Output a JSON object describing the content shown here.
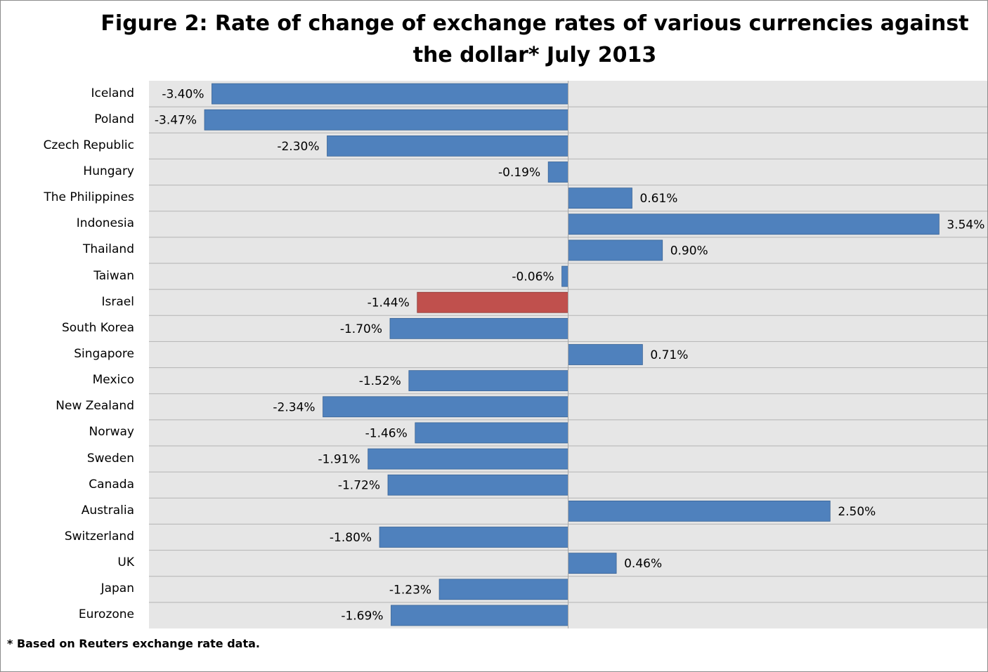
{
  "chart_data": {
    "type": "bar",
    "orientation": "horizontal",
    "title": "Figure 2: Rate of change of exchange rates of various currencies against the dollar* July 2013",
    "categories": [
      "Iceland",
      "Poland",
      "Czech Republic",
      "Hungary",
      "The Philippines",
      "Indonesia",
      "Thailand",
      "Taiwan",
      "Israel",
      "South Korea",
      "Singapore",
      "Mexico",
      "New Zealand",
      "Norway",
      "Sweden",
      "Canada",
      "Australia",
      "Switzerland",
      "UK",
      "Japan",
      "Eurozone"
    ],
    "values": [
      -3.4,
      -3.47,
      -2.3,
      -0.19,
      0.61,
      3.54,
      0.9,
      -0.06,
      -1.44,
      -1.7,
      0.71,
      -1.52,
      -2.34,
      -1.46,
      -1.91,
      -1.72,
      2.5,
      -1.8,
      0.46,
      -1.23,
      -1.69
    ],
    "data_labels": [
      "-3.40%",
      "-3.47%",
      "-2.30%",
      "-0.19%",
      "0.61%",
      "3.54%",
      "0.90%",
      "-0.06%",
      "-1.44%",
      "-1.70%",
      "0.71%",
      "-1.52%",
      "-2.34%",
      "-1.46%",
      "-1.91%",
      "-1.72%",
      "2.50%",
      "-1.80%",
      "0.46%",
      "-1.23%",
      "-1.69%"
    ],
    "highlight_category": "Israel",
    "xlim": [
      -4.0,
      4.0
    ],
    "grid": "horizontal row separators",
    "legend": "none",
    "colors": {
      "bar": "#4f81bd",
      "highlight": "#c0504d",
      "plot_background": "#e6e6e6",
      "row_separator": "#b3b3b3",
      "zero_axis": "#a6a6a6"
    }
  },
  "footnote": "* Based on Reuters exchange rate data."
}
